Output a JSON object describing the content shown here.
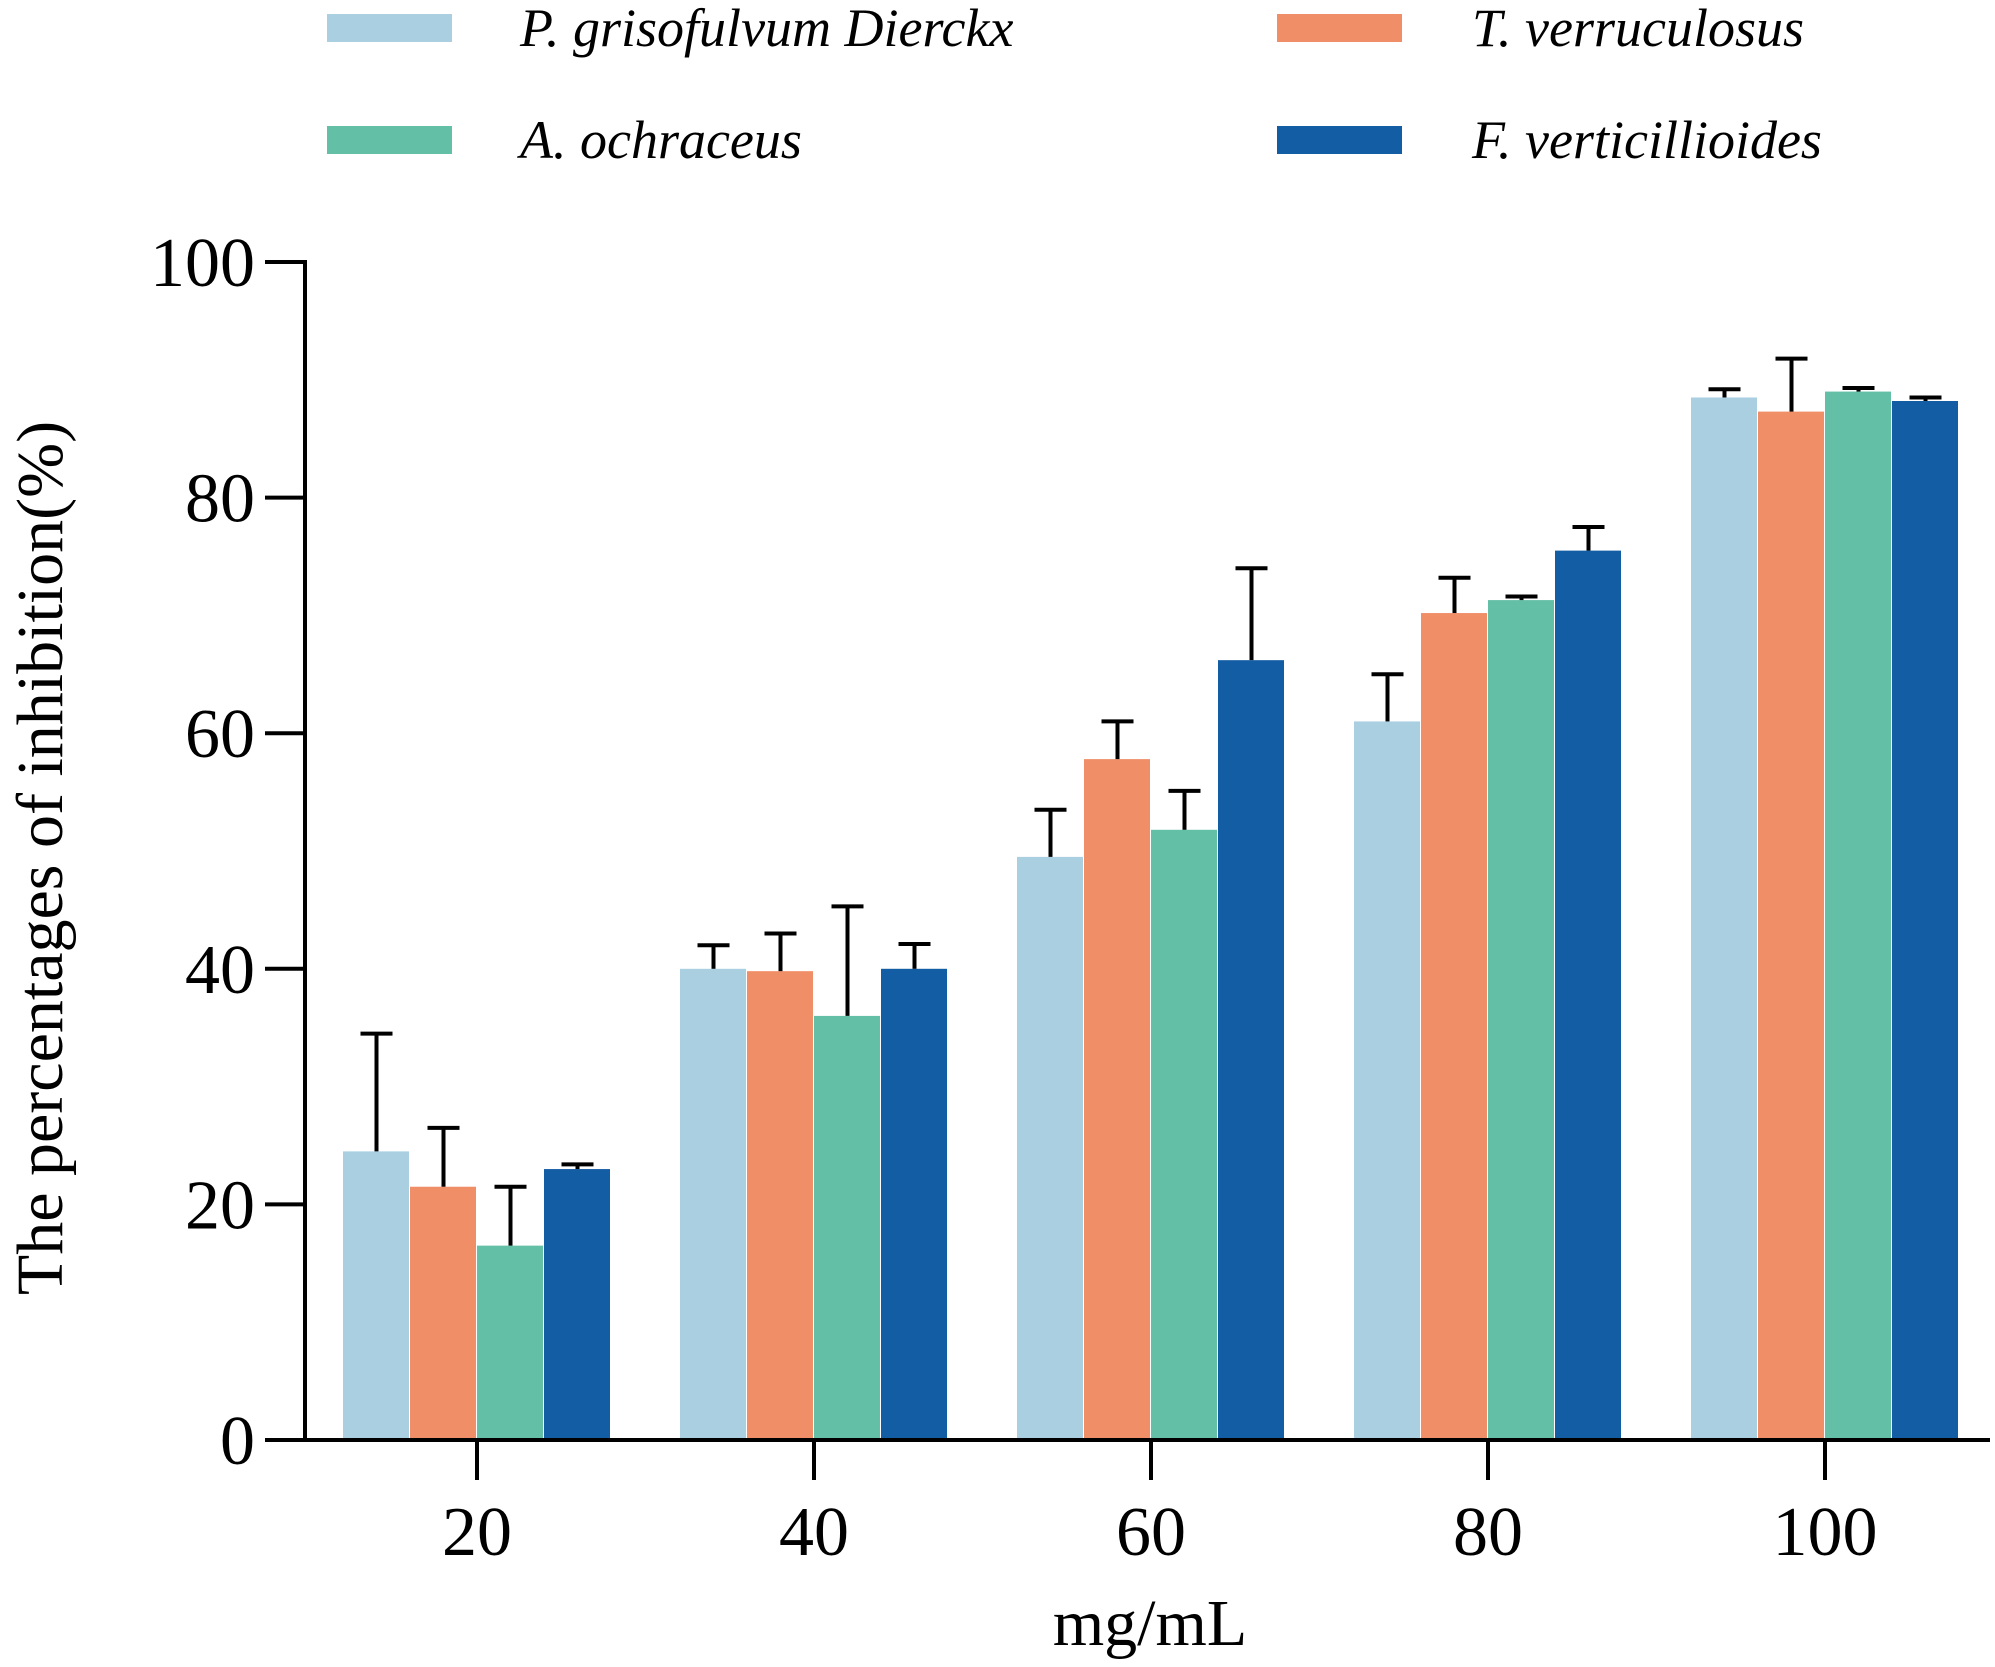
{
  "chart_data": {
    "type": "bar",
    "title": "",
    "xlabel": "mg/mL",
    "ylabel": "The percentages of inhibition(%)",
    "categories": [
      "20",
      "40",
      "60",
      "80",
      "100"
    ],
    "ylim": [
      0,
      100
    ],
    "yticks": [
      0,
      20,
      40,
      60,
      80,
      100
    ],
    "ytick_labels": [
      "0",
      "20",
      "40",
      "60",
      "80",
      "100"
    ],
    "grid": false,
    "legend_position": "top",
    "series": [
      {
        "name": "P. grisofulvum Dierckx",
        "color": "#A9CFE1",
        "values": [
          24.5,
          40.0,
          49.5,
          61.0,
          88.5
        ],
        "errors": [
          10.0,
          2.0,
          4.0,
          4.0,
          0.7
        ]
      },
      {
        "name": "T. verruculosus",
        "color": "#EF8E67",
        "values": [
          21.5,
          39.8,
          57.8,
          70.2,
          87.3
        ],
        "errors": [
          5.0,
          3.2,
          3.2,
          3.0,
          4.5
        ]
      },
      {
        "name": "A. ochraceus",
        "color": "#63BFA6",
        "values": [
          16.5,
          36.0,
          51.8,
          71.3,
          89.0
        ],
        "errors": [
          5.0,
          9.3,
          3.3,
          0.3,
          0.3
        ]
      },
      {
        "name": "F. verticillioides",
        "color": "#135DA4",
        "values": [
          23.0,
          40.0,
          66.2,
          75.5,
          88.2
        ],
        "errors": [
          0.4,
          2.1,
          7.8,
          2.0,
          0.3
        ]
      }
    ]
  }
}
